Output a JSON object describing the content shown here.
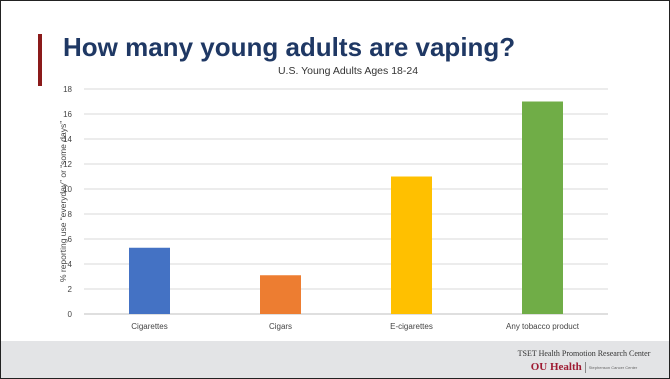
{
  "slide": {
    "title": "How many young adults are vaping?",
    "accent_color": "#8b1a1a",
    "title_color": "#1f3864"
  },
  "chart_data": {
    "type": "bar",
    "title": "U.S. Young Adults Ages 18-24",
    "xlabel": "",
    "ylabel": "% reporting use “everyday” or “some days”",
    "categories": [
      "Cigarettes",
      "Cigars",
      "E-cigarettes",
      "Any tobacco product"
    ],
    "values": [
      5.3,
      3.1,
      11.0,
      17.0
    ],
    "colors": [
      "#4472c4",
      "#ed7d31",
      "#ffc000",
      "#70ad47"
    ],
    "ylim": [
      0,
      18
    ],
    "yticks": [
      "0",
      "2",
      "4",
      "6",
      "8",
      "10",
      "12",
      "14",
      "16",
      "18"
    ],
    "grid": true,
    "legend": "none"
  },
  "logo": {
    "line1": "TSET Health Promotion Research Center",
    "mark": "OU Health",
    "sub": "Stephenson Cancer Center"
  }
}
